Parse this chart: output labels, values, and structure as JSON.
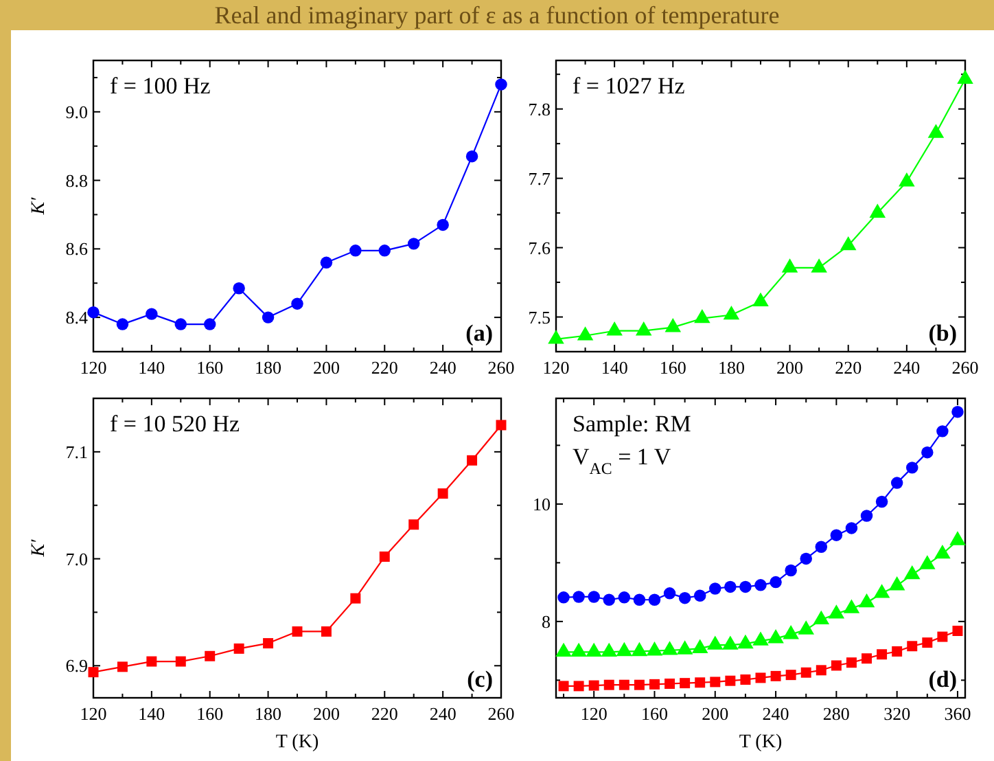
{
  "chart_data": [
    {
      "type": "line",
      "title": "Real and imaginary part of ε as a function of temperature",
      "ylabel": "K′",
      "annotations": [
        "f = 100 Hz",
        "(a)"
      ],
      "x": [
        120,
        130,
        140,
        150,
        160,
        170,
        180,
        190,
        200,
        210,
        220,
        230,
        240,
        250,
        260
      ],
      "xlim": [
        120,
        260
      ],
      "xticks": [
        120,
        {
          "value": 130,
          "label": null
        },
        140,
        {
          "value": 150,
          "label": null
        },
        160,
        {
          "value": 170,
          "label": null
        },
        180,
        {
          "value": 190,
          "label": null
        },
        200,
        {
          "value": 210,
          "label": null
        },
        220,
        {
          "value": 230,
          "label": null
        },
        240,
        {
          "value": 250,
          "label": null
        },
        260
      ],
      "ylim": [
        8.3,
        9.15
      ],
      "yticks": [
        8.4,
        {
          "value": 8.5,
          "label": null
        },
        8.6,
        {
          "value": 8.7,
          "label": null
        },
        8.8,
        {
          "value": 8.9,
          "label": null
        },
        {
          "value": 9,
          "label": "9.0"
        },
        {
          "value": 9.1,
          "label": null
        }
      ],
      "marker": "circle",
      "line_style": "solid",
      "series": [
        {
          "color": "#0000ff",
          "values": [
            8.415,
            8.38,
            8.41,
            8.38,
            8.38,
            8.485,
            8.4,
            8.44,
            8.56,
            8.595,
            8.595,
            8.615,
            8.67,
            8.87,
            9.08
          ]
        }
      ]
    },
    {
      "type": "line",
      "annotations": [
        "f = 1027 Hz",
        "(b)"
      ],
      "x": [
        120,
        130,
        140,
        150,
        160,
        170,
        180,
        190,
        200,
        210,
        220,
        230,
        240,
        250,
        260
      ],
      "xlim": [
        120,
        260
      ],
      "xticks": [
        120,
        {
          "value": 130,
          "label": null
        },
        140,
        {
          "value": 150,
          "label": null
        },
        160,
        {
          "value": 170,
          "label": null
        },
        180,
        {
          "value": 190,
          "label": null
        },
        200,
        {
          "value": 210,
          "label": null
        },
        220,
        {
          "value": 230,
          "label": null
        },
        240,
        {
          "value": 250,
          "label": null
        },
        260
      ],
      "ylim": [
        7.45,
        7.87
      ],
      "yticks": [
        7.5,
        {
          "value": 7.55,
          "label": null
        },
        7.6,
        {
          "value": 7.65,
          "label": null
        },
        7.7,
        {
          "value": 7.75,
          "label": null
        },
        7.8,
        {
          "value": 7.85,
          "label": null
        }
      ],
      "marker": "triangle",
      "line_style": "solid",
      "series": [
        {
          "color": "#00ff00",
          "values": [
            7.468,
            7.473,
            7.48,
            7.48,
            7.485,
            7.498,
            7.503,
            7.522,
            7.571,
            7.571,
            7.603,
            7.65,
            7.695,
            7.765,
            7.843
          ]
        }
      ]
    },
    {
      "type": "line",
      "xlabel": "T (K)",
      "ylabel": "K′",
      "annotations": [
        "f = 10 520 Hz",
        "(c)"
      ],
      "x": [
        120,
        130,
        140,
        150,
        160,
        170,
        180,
        190,
        200,
        210,
        220,
        230,
        240,
        250,
        260
      ],
      "xlim": [
        120,
        260
      ],
      "xticks": [
        120,
        {
          "value": 130,
          "label": null
        },
        140,
        {
          "value": 150,
          "label": null
        },
        160,
        {
          "value": 170,
          "label": null
        },
        180,
        {
          "value": 190,
          "label": null
        },
        200,
        {
          "value": 210,
          "label": null
        },
        220,
        {
          "value": 230,
          "label": null
        },
        240,
        {
          "value": 250,
          "label": null
        },
        260
      ],
      "ylim": [
        6.87,
        7.15
      ],
      "yticks": [
        6.9,
        {
          "value": 6.95,
          "label": null
        },
        {
          "value": 7,
          "label": "7.0"
        },
        {
          "value": 7.05,
          "label": null
        },
        7.1
      ],
      "marker": "square",
      "line_style": "solid",
      "series": [
        {
          "color": "#ff0000",
          "values": [
            6.894,
            6.899,
            6.904,
            6.904,
            6.909,
            6.916,
            6.921,
            6.932,
            6.932,
            6.963,
            7.002,
            7.032,
            7.061,
            7.092,
            7.125
          ]
        }
      ]
    },
    {
      "type": "line",
      "xlabel": "T (K)",
      "annotations": [
        "Sample: RM",
        "V$_{AC}$ = 1 V",
        "(d)"
      ],
      "x": [
        100,
        110,
        120,
        130,
        140,
        150,
        160,
        170,
        180,
        190,
        200,
        210,
        220,
        230,
        240,
        250,
        260,
        270,
        280,
        290,
        300,
        310,
        320,
        330,
        340,
        350,
        360
      ],
      "xlim": [
        95,
        365
      ],
      "xticks": [
        {
          "value": 100,
          "label": null
        },
        120,
        {
          "value": 140,
          "label": null
        },
        160,
        {
          "value": 180,
          "label": null
        },
        200,
        {
          "value": 220,
          "label": null
        },
        240,
        {
          "value": 260,
          "label": null
        },
        280,
        {
          "value": 300,
          "label": null
        },
        320,
        {
          "value": 340,
          "label": null
        },
        360
      ],
      "ylim": [
        6.7,
        11.8
      ],
      "yticks": [
        {
          "value": 7,
          "label": null
        },
        8,
        {
          "value": 9,
          "label": null
        },
        10,
        {
          "value": 11,
          "label": null
        }
      ],
      "line_style": "solid",
      "series": [
        {
          "color": "#0000ff",
          "marker": "circle",
          "values": [
            8.41,
            8.42,
            8.42,
            8.37,
            8.41,
            8.37,
            8.37,
            8.48,
            8.4,
            8.44,
            8.56,
            8.59,
            8.59,
            8.62,
            8.67,
            8.87,
            9.07,
            9.27,
            9.47,
            9.59,
            9.8,
            10.04,
            10.36,
            10.62,
            10.88,
            11.24,
            11.57
          ]
        },
        {
          "color": "#00ff00",
          "marker": "triangle",
          "values": [
            7.48,
            7.48,
            7.48,
            7.48,
            7.49,
            7.49,
            7.5,
            7.51,
            7.52,
            7.54,
            7.6,
            7.6,
            7.62,
            7.67,
            7.71,
            7.78,
            7.86,
            8.03,
            8.13,
            8.22,
            8.32,
            8.48,
            8.61,
            8.8,
            8.97,
            9.15,
            9.38
          ]
        },
        {
          "color": "#ff0000",
          "marker": "square",
          "values": [
            6.9,
            6.9,
            6.91,
            6.92,
            6.92,
            6.92,
            6.93,
            6.94,
            6.95,
            6.96,
            6.97,
            6.99,
            7.01,
            7.04,
            7.07,
            7.09,
            7.13,
            7.17,
            7.25,
            7.3,
            7.37,
            7.44,
            7.49,
            7.58,
            7.64,
            7.74,
            7.84
          ]
        }
      ]
    }
  ]
}
